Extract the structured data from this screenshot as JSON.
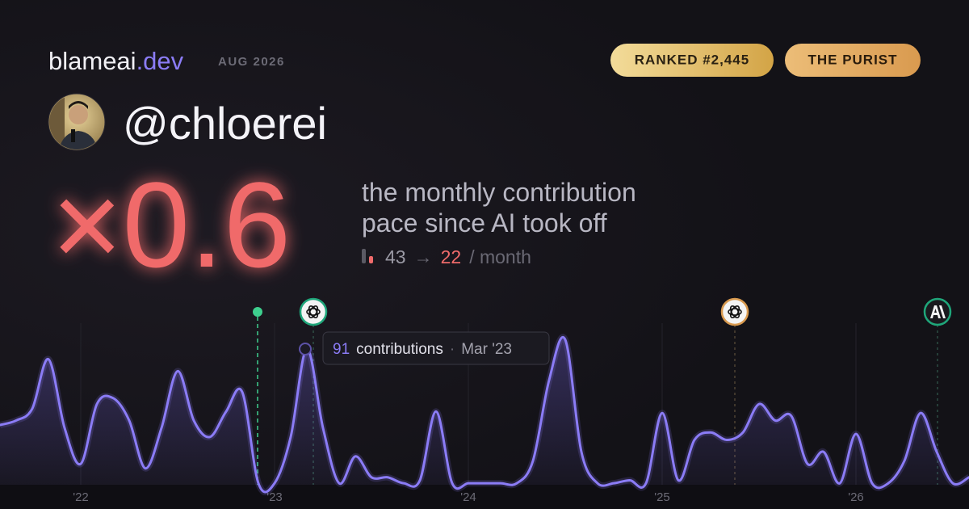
{
  "header": {
    "brand": "blameai",
    "brand_tld": ".dev",
    "period": "AUG 2026",
    "badges": [
      "RANKED #2,445",
      "THE PURIST"
    ]
  },
  "profile": {
    "handle": "@chloerei"
  },
  "headline": {
    "multiplier": "×0.6",
    "description": [
      "the monthly contribution",
      "pace since AI took off"
    ],
    "pace_before": 43,
    "pace_arrow": "→",
    "pace_after": 22,
    "pace_unit": "/ month"
  },
  "chart_data": {
    "type": "line",
    "categories": [
      null,
      null,
      null,
      null,
      null,
      "'22",
      null,
      null,
      null,
      null,
      null,
      null,
      null,
      null,
      null,
      null,
      null,
      "'23",
      null,
      null,
      null,
      null,
      null,
      null,
      null,
      null,
      null,
      null,
      null,
      "'24",
      null,
      null,
      null,
      null,
      null,
      null,
      null,
      null,
      null,
      null,
      null,
      "'25",
      null,
      null,
      null,
      null,
      null,
      null,
      null,
      null,
      null,
      null,
      null,
      "'26",
      null,
      null,
      null,
      null,
      null,
      null,
      null
    ],
    "series": [
      {
        "name": "contributions",
        "color": "#8b7cf6",
        "values": [
          40,
          43,
          51,
          84,
          38,
          14,
          54,
          58,
          43,
          11,
          38,
          76,
          43,
          32,
          49,
          62,
          1,
          1,
          32,
          91,
          38,
          1,
          19,
          5,
          5,
          1,
          3,
          49,
          1,
          1,
          1,
          1,
          1,
          16,
          70,
          97,
          22,
          1,
          1,
          3,
          1,
          48,
          3,
          30,
          35,
          30,
          35,
          54,
          43,
          46,
          14,
          22,
          1,
          34,
          1,
          1,
          16,
          48,
          22,
          1,
          5
        ]
      }
    ],
    "ylim": [
      0,
      100
    ],
    "tooltip": {
      "unit": "contributions",
      "separator": "·",
      "date": "Mar '23"
    }
  }
}
